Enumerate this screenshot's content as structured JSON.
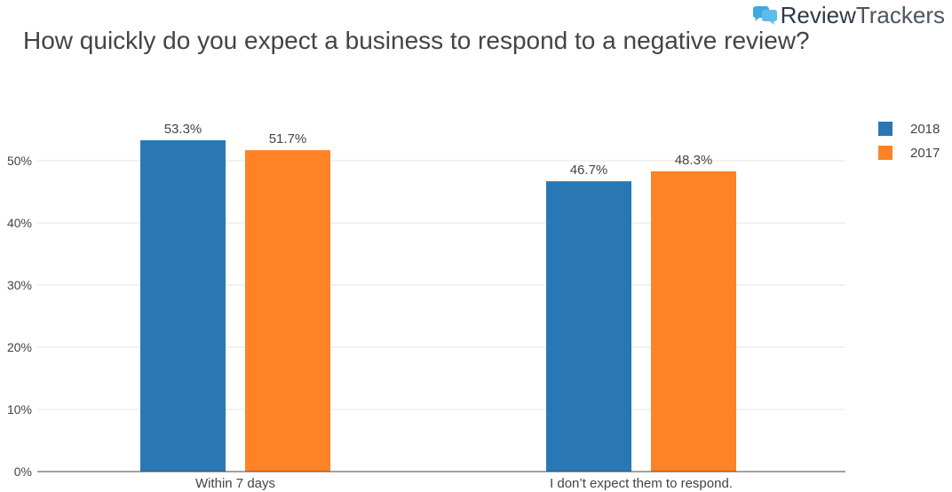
{
  "brand": {
    "name_part1": "Review",
    "name_part2": "Trackers",
    "icon": "speech-bubble-icon",
    "color": "#3fa9dd"
  },
  "chart_data": {
    "type": "bar",
    "title": "How quickly do you expect a business to respond to a negative review?",
    "categories": [
      "Within 7 days",
      "I don’t expect them to respond."
    ],
    "series": [
      {
        "name": "2018",
        "values": [
          53.3,
          46.7
        ],
        "labels": [
          "53.3%",
          "46.7%"
        ],
        "color": "#2978b5"
      },
      {
        "name": "2017",
        "values": [
          51.7,
          48.3
        ],
        "labels": [
          "51.7%",
          "48.3%"
        ],
        "color": "#ff8225"
      }
    ],
    "yticks": [
      0,
      10,
      20,
      30,
      40,
      50
    ],
    "ytick_labels": [
      "0%",
      "10%",
      "20%",
      "30%",
      "40%",
      "50%"
    ],
    "ylim": [
      0,
      57
    ],
    "xlabel": "",
    "ylabel": "",
    "grid": true,
    "legend": "top-right"
  }
}
